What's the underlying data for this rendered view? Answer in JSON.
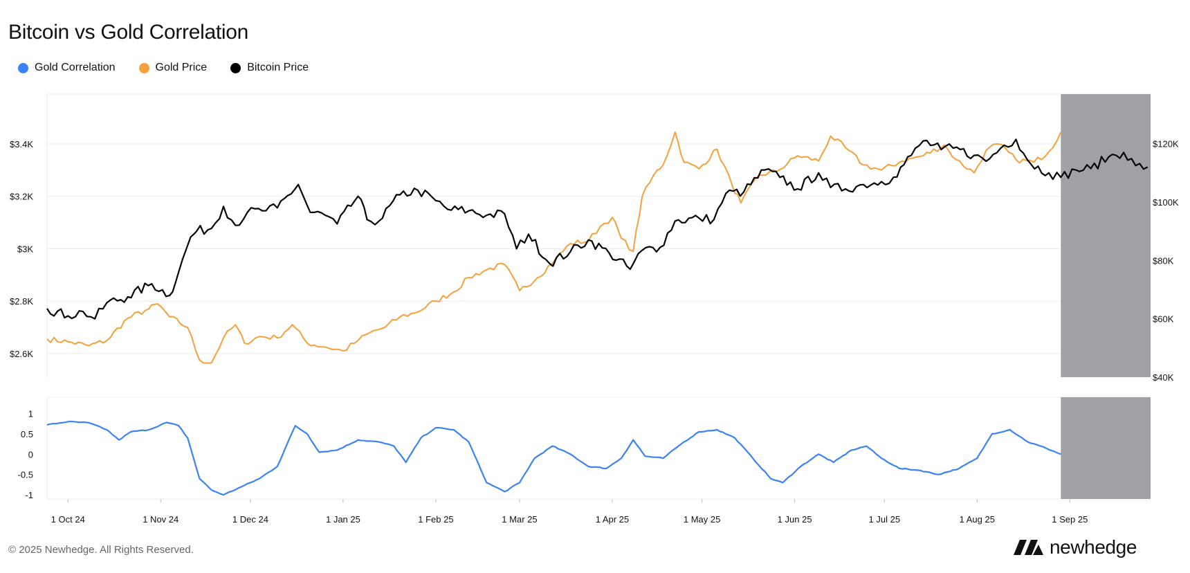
{
  "title": "Bitcoin vs Gold Correlation",
  "legend": [
    {
      "label": "Gold Correlation",
      "color": "#3b82f6"
    },
    {
      "label": "Gold Price",
      "color": "#f5a03c"
    },
    {
      "label": "Bitcoin Price",
      "color": "#000000"
    }
  ],
  "footer": "© 2025 Newhedge. All Rights Reserved.",
  "brand": {
    "name": "newhedge",
    "icon": "newhedge-logo-icon"
  },
  "colors": {
    "shade": "#9fa1a5",
    "grid": "#ececec"
  },
  "chart_data": [
    {
      "type": "line",
      "title": "Bitcoin vs Gold Correlation",
      "x_ticks": [
        "1 Oct 24",
        "1 Nov 24",
        "1 Dec 24",
        "1 Jan 25",
        "1 Feb 25",
        "1 Mar 25",
        "1 Apr 25",
        "1 May 25",
        "1 Jun 25",
        "1 Jul 25",
        "1 Aug 25",
        "1 Sep 25"
      ],
      "xlim": [
        "2024-09-24",
        "2025-09-28"
      ],
      "shaded_range": [
        "2025-08-29",
        "2025-09-28"
      ],
      "grid": true,
      "legend_position": "top-left",
      "left_axis": {
        "ticks": [
          "$2.6K",
          "$2.8K",
          "$3K",
          "$3.2K",
          "$3.4K"
        ],
        "tick_values": [
          2600,
          2800,
          3000,
          3200,
          3400
        ],
        "range": [
          2510,
          3590
        ]
      },
      "right_axis": {
        "ticks": [
          "$40K",
          "$60K",
          "$80K",
          "$100K",
          "$120K"
        ],
        "tick_values": [
          40000,
          60000,
          80000,
          100000,
          120000
        ],
        "range": [
          40000,
          137000
        ]
      },
      "series": [
        {
          "name": "Gold Price",
          "axis": "left",
          "color": "#f5a03c",
          "points": [
            [
              "2024-09-24",
              2655
            ],
            [
              "2024-10-01",
              2645
            ],
            [
              "2024-10-08",
              2630
            ],
            [
              "2024-10-14",
              2650
            ],
            [
              "2024-10-21",
              2735
            ],
            [
              "2024-10-28",
              2770
            ],
            [
              "2024-10-31",
              2790
            ],
            [
              "2024-11-04",
              2740
            ],
            [
              "2024-11-10",
              2700
            ],
            [
              "2024-11-14",
              2575
            ],
            [
              "2024-11-18",
              2565
            ],
            [
              "2024-11-22",
              2660
            ],
            [
              "2024-11-26",
              2710
            ],
            [
              "2024-11-29",
              2640
            ],
            [
              "2024-12-04",
              2665
            ],
            [
              "2024-12-10",
              2660
            ],
            [
              "2024-12-15",
              2710
            ],
            [
              "2024-12-20",
              2640
            ],
            [
              "2024-12-26",
              2625
            ],
            [
              "2025-01-01",
              2610
            ],
            [
              "2025-01-06",
              2650
            ],
            [
              "2025-01-10",
              2680
            ],
            [
              "2025-01-15",
              2700
            ],
            [
              "2025-01-20",
              2740
            ],
            [
              "2025-01-25",
              2755
            ],
            [
              "2025-02-01",
              2800
            ],
            [
              "2025-02-07",
              2835
            ],
            [
              "2025-02-12",
              2890
            ],
            [
              "2025-02-18",
              2920
            ],
            [
              "2025-02-24",
              2940
            ],
            [
              "2025-03-01",
              2840
            ],
            [
              "2025-03-07",
              2890
            ],
            [
              "2025-03-13",
              2960
            ],
            [
              "2025-03-18",
              3020
            ],
            [
              "2025-03-24",
              3030
            ],
            [
              "2025-03-28",
              3085
            ],
            [
              "2025-04-01",
              3120
            ],
            [
              "2025-04-04",
              3040
            ],
            [
              "2025-04-08",
              2990
            ],
            [
              "2025-04-11",
              3200
            ],
            [
              "2025-04-16",
              3300
            ],
            [
              "2025-04-18",
              3320
            ],
            [
              "2025-04-22",
              3445
            ],
            [
              "2025-04-25",
              3330
            ],
            [
              "2025-04-30",
              3305
            ],
            [
              "2025-05-06",
              3380
            ],
            [
              "2025-05-11",
              3245
            ],
            [
              "2025-05-14",
              3175
            ],
            [
              "2025-05-20",
              3280
            ],
            [
              "2025-05-26",
              3295
            ],
            [
              "2025-06-02",
              3355
            ],
            [
              "2025-06-09",
              3335
            ],
            [
              "2025-06-13",
              3430
            ],
            [
              "2025-06-18",
              3385
            ],
            [
              "2025-06-24",
              3320
            ],
            [
              "2025-06-30",
              3300
            ],
            [
              "2025-07-07",
              3335
            ],
            [
              "2025-07-14",
              3355
            ],
            [
              "2025-07-21",
              3395
            ],
            [
              "2025-07-25",
              3340
            ],
            [
              "2025-07-31",
              3290
            ],
            [
              "2025-08-04",
              3375
            ],
            [
              "2025-08-08",
              3400
            ],
            [
              "2025-08-14",
              3340
            ],
            [
              "2025-08-20",
              3330
            ],
            [
              "2025-08-25",
              3370
            ],
            [
              "2025-08-29",
              3445
            ]
          ]
        },
        {
          "name": "Bitcoin Price",
          "axis": "right",
          "color": "#000000",
          "points": [
            [
              "2024-09-24",
              63500
            ],
            [
              "2024-10-01",
              61000
            ],
            [
              "2024-10-06",
              62500
            ],
            [
              "2024-10-10",
              60000
            ],
            [
              "2024-10-14",
              65500
            ],
            [
              "2024-10-21",
              67500
            ],
            [
              "2024-10-29",
              72000
            ],
            [
              "2024-11-04",
              68000
            ],
            [
              "2024-11-07",
              76000
            ],
            [
              "2024-11-11",
              88000
            ],
            [
              "2024-11-13",
              90000
            ],
            [
              "2024-11-18",
              91000
            ],
            [
              "2024-11-22",
              98500
            ],
            [
              "2024-11-26",
              92000
            ],
            [
              "2024-11-30",
              96500
            ],
            [
              "2024-12-05",
              97000
            ],
            [
              "2024-12-10",
              98000
            ],
            [
              "2024-12-17",
              106000
            ],
            [
              "2024-12-21",
              96500
            ],
            [
              "2024-12-26",
              95500
            ],
            [
              "2024-12-30",
              92500
            ],
            [
              "2025-01-06",
              102000
            ],
            [
              "2025-01-09",
              94000
            ],
            [
              "2025-01-13",
              93500
            ],
            [
              "2025-01-20",
              102500
            ],
            [
              "2025-01-26",
              104000
            ],
            [
              "2025-02-01",
              100500
            ],
            [
              "2025-02-05",
              97500
            ],
            [
              "2025-02-12",
              97000
            ],
            [
              "2025-02-18",
              95500
            ],
            [
              "2025-02-24",
              96000
            ],
            [
              "2025-02-28",
              84000
            ],
            [
              "2025-03-04",
              89000
            ],
            [
              "2025-03-11",
              79000
            ],
            [
              "2025-03-18",
              83000
            ],
            [
              "2025-03-24",
              87000
            ],
            [
              "2025-03-31",
              82500
            ],
            [
              "2025-04-07",
              77000
            ],
            [
              "2025-04-11",
              83500
            ],
            [
              "2025-04-17",
              84500
            ],
            [
              "2025-04-22",
              93500
            ],
            [
              "2025-04-30",
              94500
            ],
            [
              "2025-05-05",
              94000
            ],
            [
              "2025-05-09",
              103000
            ],
            [
              "2025-05-15",
              103500
            ],
            [
              "2025-05-22",
              111000
            ],
            [
              "2025-05-27",
              108500
            ],
            [
              "2025-06-02",
              104500
            ],
            [
              "2025-06-09",
              110000
            ],
            [
              "2025-06-13",
              105000
            ],
            [
              "2025-06-18",
              104500
            ],
            [
              "2025-06-24",
              106000
            ],
            [
              "2025-06-30",
              107000
            ],
            [
              "2025-07-04",
              108500
            ],
            [
              "2025-07-10",
              116000
            ],
            [
              "2025-07-14",
              121000
            ],
            [
              "2025-07-20",
              118000
            ],
            [
              "2025-07-24",
              118500
            ],
            [
              "2025-07-31",
              116000
            ],
            [
              "2025-08-04",
              114000
            ],
            [
              "2025-08-10",
              119500
            ],
            [
              "2025-08-14",
              121500
            ],
            [
              "2025-08-19",
              113000
            ],
            [
              "2025-08-25",
              110000
            ],
            [
              "2025-08-29",
              108500
            ],
            [
              "2025-09-03",
              111000
            ],
            [
              "2025-09-08",
              111500
            ],
            [
              "2025-09-14",
              115500
            ],
            [
              "2025-09-19",
              117000
            ],
            [
              "2025-09-23",
              112500
            ],
            [
              "2025-09-27",
              112000
            ]
          ]
        }
      ]
    },
    {
      "type": "line",
      "xlim": [
        "2024-09-24",
        "2025-09-28"
      ],
      "shaded_range": [
        "2025-08-29",
        "2025-09-28"
      ],
      "y_ticks": [
        "1",
        "0.5",
        "0",
        "-0.5",
        "-1"
      ],
      "y_tick_values": [
        1,
        0.5,
        0,
        -0.5,
        -1
      ],
      "ylim": [
        -1.1,
        1.4
      ],
      "series": [
        {
          "name": "Gold Correlation",
          "color": "#3b82f6",
          "points": [
            [
              "2024-09-24",
              0.72
            ],
            [
              "2024-10-01",
              0.8
            ],
            [
              "2024-10-08",
              0.77
            ],
            [
              "2024-10-14",
              0.6
            ],
            [
              "2024-10-18",
              0.35
            ],
            [
              "2024-10-22",
              0.55
            ],
            [
              "2024-10-28",
              0.6
            ],
            [
              "2024-11-03",
              0.78
            ],
            [
              "2024-11-07",
              0.7
            ],
            [
              "2024-11-10",
              0.4
            ],
            [
              "2024-11-14",
              -0.6
            ],
            [
              "2024-11-18",
              -0.88
            ],
            [
              "2024-11-22",
              -1.0
            ],
            [
              "2024-11-28",
              -0.8
            ],
            [
              "2024-12-04",
              -0.6
            ],
            [
              "2024-12-10",
              -0.3
            ],
            [
              "2024-12-16",
              0.7
            ],
            [
              "2024-12-20",
              0.5
            ],
            [
              "2024-12-24",
              0.05
            ],
            [
              "2024-12-30",
              0.1
            ],
            [
              "2025-01-06",
              0.35
            ],
            [
              "2025-01-13",
              0.3
            ],
            [
              "2025-01-18",
              0.2
            ],
            [
              "2025-01-22",
              -0.2
            ],
            [
              "2025-01-27",
              0.4
            ],
            [
              "2025-02-01",
              0.65
            ],
            [
              "2025-02-07",
              0.6
            ],
            [
              "2025-02-12",
              0.3
            ],
            [
              "2025-02-18",
              -0.7
            ],
            [
              "2025-02-24",
              -0.92
            ],
            [
              "2025-03-01",
              -0.7
            ],
            [
              "2025-03-06",
              -0.1
            ],
            [
              "2025-03-12",
              0.2
            ],
            [
              "2025-03-18",
              0.0
            ],
            [
              "2025-03-24",
              -0.3
            ],
            [
              "2025-03-30",
              -0.35
            ],
            [
              "2025-04-04",
              -0.1
            ],
            [
              "2025-04-08",
              0.35
            ],
            [
              "2025-04-12",
              -0.05
            ],
            [
              "2025-04-18",
              -0.1
            ],
            [
              "2025-04-24",
              0.25
            ],
            [
              "2025-04-30",
              0.55
            ],
            [
              "2025-05-06",
              0.6
            ],
            [
              "2025-05-12",
              0.4
            ],
            [
              "2025-05-18",
              -0.1
            ],
            [
              "2025-05-24",
              -0.6
            ],
            [
              "2025-05-28",
              -0.7
            ],
            [
              "2025-06-03",
              -0.3
            ],
            [
              "2025-06-09",
              0.0
            ],
            [
              "2025-06-14",
              -0.2
            ],
            [
              "2025-06-20",
              0.1
            ],
            [
              "2025-06-25",
              0.2
            ],
            [
              "2025-06-30",
              -0.1
            ],
            [
              "2025-07-06",
              -0.35
            ],
            [
              "2025-07-13",
              -0.4
            ],
            [
              "2025-07-19",
              -0.5
            ],
            [
              "2025-07-26",
              -0.35
            ],
            [
              "2025-08-01",
              -0.1
            ],
            [
              "2025-08-06",
              0.5
            ],
            [
              "2025-08-12",
              0.6
            ],
            [
              "2025-08-18",
              0.3
            ],
            [
              "2025-08-24",
              0.15
            ],
            [
              "2025-08-29",
              0.0
            ]
          ]
        }
      ]
    }
  ]
}
